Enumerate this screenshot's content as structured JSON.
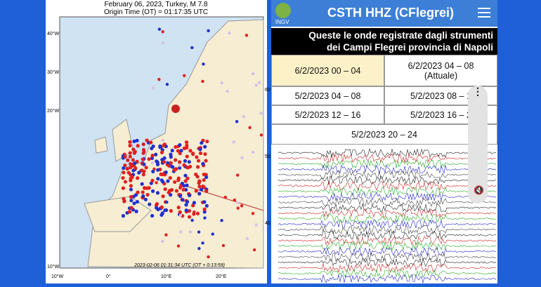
{
  "map": {
    "title": "February 06, 2023, Turkey, M 7.8",
    "subtitle": "Origin Time (OT) = 01:17:35 UTC",
    "left_labels": [
      "40°W",
      "30°W",
      "20°W",
      "10°W"
    ],
    "bottom_labels": [
      "10°W",
      "0°",
      "10°E",
      "20°E"
    ],
    "right_labels": [
      "60",
      "50",
      "40"
    ],
    "timestamp": "2023-02-06 01:31:34 UTC (OT + 0:13:59)"
  },
  "app": {
    "logo": "INGV",
    "title": "CSTH HHZ (CFlegrei)",
    "banner": [
      "Queste le onde registrate dagli strumenti",
      "dei Campi Flegrei provincia di Napoli"
    ],
    "table": {
      "rows": [
        [
          "6/2/2023 00 – 04",
          "6/2/2023 04 – 08"
        ],
        [
          "5/2/2023 04 – 08",
          "5/2/2023 08 – 1"
        ],
        [
          "5/2/2023 12 – 16",
          "5/2/2023 16 – 2"
        ],
        [
          "5/2/2023 20 – 24"
        ]
      ],
      "current_label": "(Attuale)"
    }
  }
}
